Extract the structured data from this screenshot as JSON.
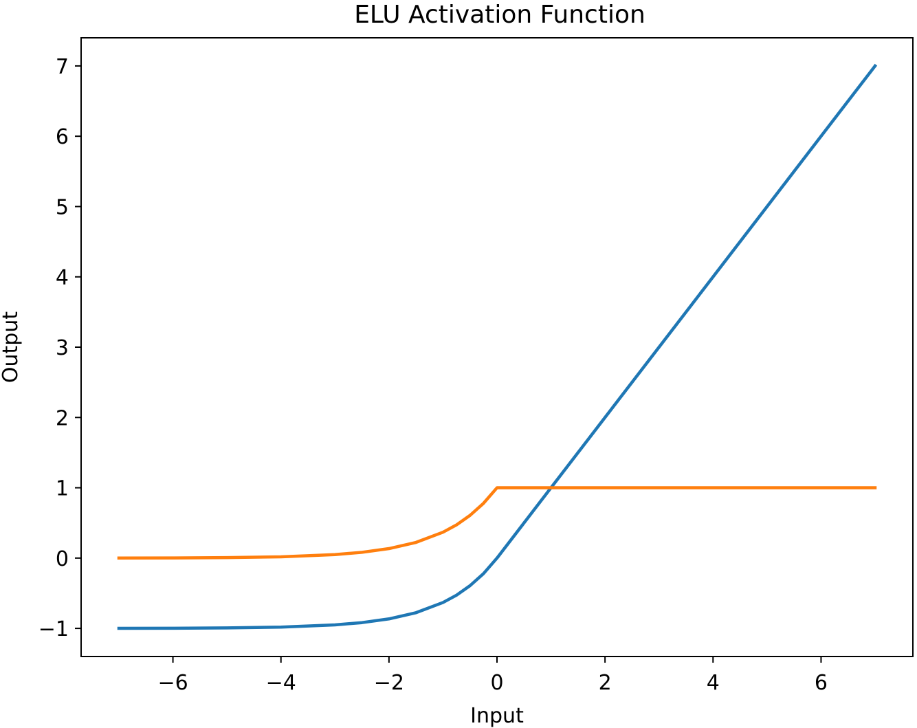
{
  "chart_data": {
    "type": "line",
    "title": "ELU Activation Function",
    "xlabel": "Input",
    "ylabel": "Output",
    "xlim": [
      -7.7,
      7.7
    ],
    "ylim": [
      -1.4,
      7.4
    ],
    "x_ticks": [
      -6,
      -4,
      -2,
      0,
      2,
      4,
      6
    ],
    "y_ticks": [
      -1,
      0,
      1,
      2,
      3,
      4,
      5,
      6,
      7
    ],
    "x_tick_labels": [
      "−6",
      "−4",
      "−2",
      "0",
      "2",
      "4",
      "6"
    ],
    "y_tick_labels": [
      "−1",
      "0",
      "1",
      "2",
      "3",
      "4",
      "5",
      "6",
      "7"
    ],
    "grid": false,
    "legend": false,
    "series": [
      {
        "color": "#1f77b4",
        "x": [
          -7,
          -6,
          -5,
          -4,
          -3,
          -2.5,
          -2,
          -1.5,
          -1,
          -0.75,
          -0.5,
          -0.25,
          0,
          1,
          2,
          3,
          4,
          5,
          6,
          7
        ],
        "y": [
          -0.999,
          -0.998,
          -0.993,
          -0.982,
          -0.95,
          -0.918,
          -0.865,
          -0.777,
          -0.632,
          -0.528,
          -0.393,
          -0.221,
          0,
          1,
          2,
          3,
          4,
          5,
          6,
          7
        ]
      },
      {
        "color": "#ff7f0e",
        "x": [
          -7,
          -6,
          -5,
          -4,
          -3,
          -2.5,
          -2,
          -1.5,
          -1,
          -0.75,
          -0.5,
          -0.25,
          0,
          1,
          2,
          3,
          4,
          5,
          6,
          7
        ],
        "y": [
          0.001,
          0.002,
          0.007,
          0.018,
          0.05,
          0.082,
          0.135,
          0.223,
          0.368,
          0.472,
          0.607,
          0.779,
          1,
          1,
          1,
          1,
          1,
          1,
          1,
          1
        ]
      }
    ]
  }
}
